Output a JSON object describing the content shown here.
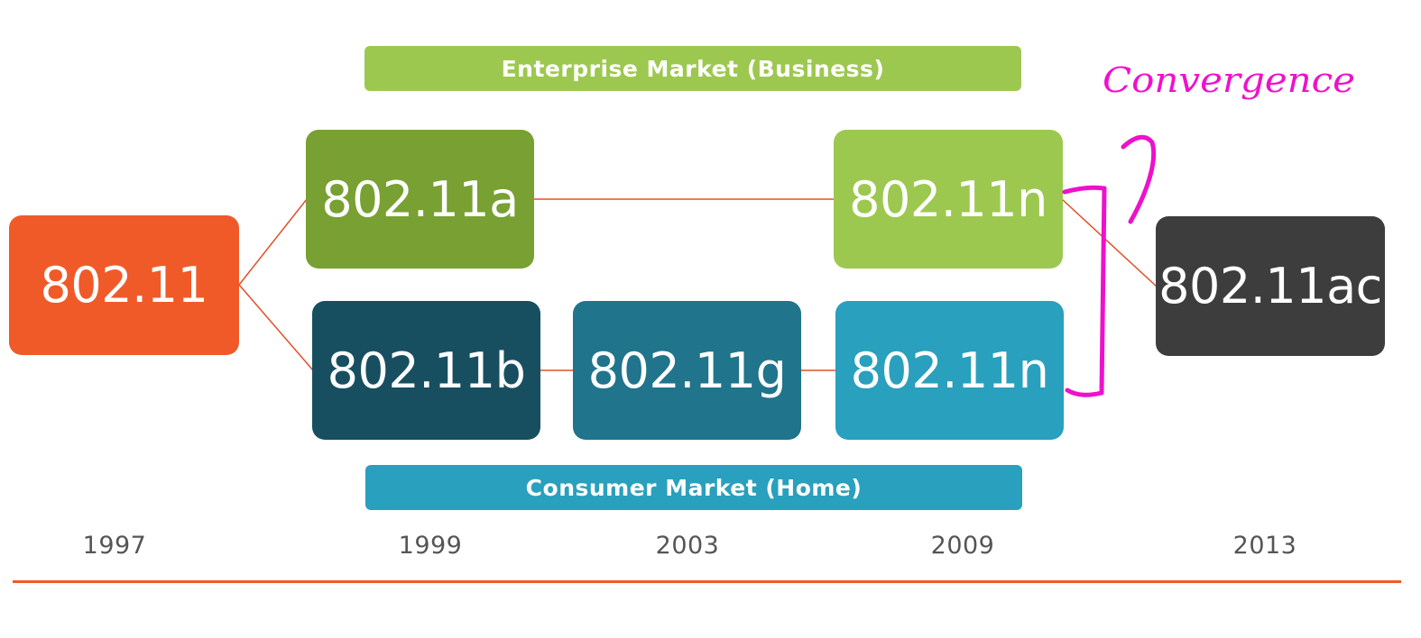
{
  "banners": {
    "enterprise": "Enterprise Market (Business)",
    "consumer": "Consumer Market (Home)"
  },
  "standards": {
    "base": "802.11",
    "a": "802.11a",
    "b": "802.11b",
    "g": "802.11g",
    "n_enterprise": "802.11n",
    "n_consumer": "802.11n",
    "ac": "802.11ac"
  },
  "years": [
    "1997",
    "1999",
    "2003",
    "2009",
    "2013"
  ],
  "annotation": {
    "text": "Convergence",
    "color": "#ee11cc"
  },
  "colors": {
    "base": "#f05a28",
    "enterprise_a": "#78a032",
    "enterprise_n": "#9dc850",
    "consumer_b": "#174f60",
    "consumer_g": "#20748c",
    "consumer_n": "#29a0bd",
    "ac": "#3d3d3d",
    "connector": "#e0502a",
    "timeline": "#f05a28"
  }
}
